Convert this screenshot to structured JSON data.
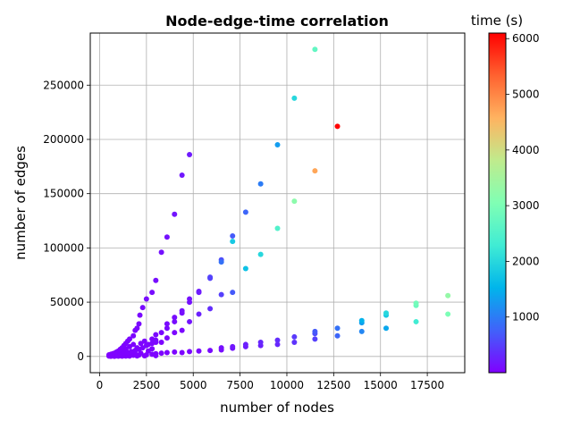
{
  "chart_data": {
    "type": "scatter",
    "title": "Node-edge-time correlation",
    "xlabel": "number of nodes",
    "ylabel": "number of edges",
    "xlim": [
      -500,
      19500
    ],
    "ylim": [
      -15000,
      298000
    ],
    "xticks": [
      0,
      2500,
      5000,
      7500,
      10000,
      12500,
      15000,
      17500
    ],
    "yticks": [
      0,
      50000,
      100000,
      150000,
      200000,
      250000
    ],
    "xtick_labels": [
      "0",
      "2500",
      "5000",
      "7500",
      "10000",
      "12500",
      "15000",
      "17500"
    ],
    "ytick_labels": [
      "0",
      "50000",
      "100000",
      "150000",
      "200000",
      "250000"
    ],
    "grid": true,
    "colorbar": {
      "label": "time (s)",
      "range": [
        0,
        6100
      ],
      "ticks": [
        1000,
        2000,
        3000,
        4000,
        5000,
        6000
      ],
      "tick_labels": [
        "1000",
        "2000",
        "3000",
        "4000",
        "5000",
        "6000"
      ],
      "colormap": "rainbow"
    },
    "points": [
      {
        "x": 500,
        "y": 1500,
        "t": 5
      },
      {
        "x": 600,
        "y": 2000,
        "t": 8
      },
      {
        "x": 700,
        "y": 2500,
        "t": 10
      },
      {
        "x": 800,
        "y": 3000,
        "t": 12
      },
      {
        "x": 900,
        "y": 4000,
        "t": 15
      },
      {
        "x": 1000,
        "y": 5000,
        "t": 18
      },
      {
        "x": 1100,
        "y": 6500,
        "t": 20
      },
      {
        "x": 1200,
        "y": 8000,
        "t": 25
      },
      {
        "x": 1300,
        "y": 10000,
        "t": 30
      },
      {
        "x": 1400,
        "y": 12000,
        "t": 35
      },
      {
        "x": 1500,
        "y": 14000,
        "t": 40
      },
      {
        "x": 1600,
        "y": 16000,
        "t": 45
      },
      {
        "x": 1800,
        "y": 19000,
        "t": 50
      },
      {
        "x": 1900,
        "y": 24000,
        "t": 55
      },
      {
        "x": 2000,
        "y": 26000,
        "t": 60
      },
      {
        "x": 2100,
        "y": 30000,
        "t": 70
      },
      {
        "x": 2150,
        "y": 38000,
        "t": 75
      },
      {
        "x": 2300,
        "y": 45000,
        "t": 80
      },
      {
        "x": 2500,
        "y": 53000,
        "t": 90
      },
      {
        "x": 2800,
        "y": 59000,
        "t": 100
      },
      {
        "x": 3000,
        "y": 70000,
        "t": 110
      },
      {
        "x": 3300,
        "y": 96000,
        "t": 130
      },
      {
        "x": 3600,
        "y": 110000,
        "t": 140
      },
      {
        "x": 4000,
        "y": 131000,
        "t": 160
      },
      {
        "x": 4400,
        "y": 167000,
        "t": 180
      },
      {
        "x": 4800,
        "y": 186000,
        "t": 200
      },
      {
        "x": 500,
        "y": 800,
        "t": 5
      },
      {
        "x": 650,
        "y": 1200,
        "t": 8
      },
      {
        "x": 800,
        "y": 1600,
        "t": 10
      },
      {
        "x": 950,
        "y": 2000,
        "t": 12
      },
      {
        "x": 1100,
        "y": 2600,
        "t": 15
      },
      {
        "x": 1300,
        "y": 3200,
        "t": 18
      },
      {
        "x": 1500,
        "y": 3800,
        "t": 20
      },
      {
        "x": 1700,
        "y": 4500,
        "t": 25
      },
      {
        "x": 1900,
        "y": 5500,
        "t": 30
      },
      {
        "x": 2100,
        "y": 6500,
        "t": 35
      },
      {
        "x": 2300,
        "y": 8000,
        "t": 40
      },
      {
        "x": 2500,
        "y": 10000,
        "t": 45
      },
      {
        "x": 2800,
        "y": 12000,
        "t": 50
      },
      {
        "x": 3000,
        "y": 15000,
        "t": 60
      },
      {
        "x": 3000,
        "y": 20000,
        "t": 65
      },
      {
        "x": 3300,
        "y": 22000,
        "t": 70
      },
      {
        "x": 3600,
        "y": 26000,
        "t": 80
      },
      {
        "x": 3600,
        "y": 30000,
        "t": 85
      },
      {
        "x": 4000,
        "y": 32000,
        "t": 90
      },
      {
        "x": 4000,
        "y": 36000,
        "t": 95
      },
      {
        "x": 4400,
        "y": 40000,
        "t": 110
      },
      {
        "x": 4400,
        "y": 42000,
        "t": 115
      },
      {
        "x": 4800,
        "y": 50000,
        "t": 130
      },
      {
        "x": 4800,
        "y": 53000,
        "t": 135
      },
      {
        "x": 5300,
        "y": 59000,
        "t": 200
      },
      {
        "x": 5300,
        "y": 60000,
        "t": 210
      },
      {
        "x": 5900,
        "y": 72000,
        "t": 500
      },
      {
        "x": 5900,
        "y": 73000,
        "t": 520
      },
      {
        "x": 6500,
        "y": 87000,
        "t": 900
      },
      {
        "x": 6500,
        "y": 89000,
        "t": 600
      },
      {
        "x": 7100,
        "y": 106000,
        "t": 1800
      },
      {
        "x": 7100,
        "y": 111000,
        "t": 700
      },
      {
        "x": 7800,
        "y": 133000,
        "t": 800
      },
      {
        "x": 8600,
        "y": 159000,
        "t": 1000
      },
      {
        "x": 9500,
        "y": 195000,
        "t": 1300
      },
      {
        "x": 10400,
        "y": 238000,
        "t": 2000
      },
      {
        "x": 11500,
        "y": 283000,
        "t": 2700
      },
      {
        "x": 12700,
        "y": 212000,
        "t": 6100
      },
      {
        "x": 11500,
        "y": 171000,
        "t": 4700
      },
      {
        "x": 10400,
        "y": 143000,
        "t": 3200
      },
      {
        "x": 9500,
        "y": 118000,
        "t": 2500
      },
      {
        "x": 8600,
        "y": 94000,
        "t": 2000
      },
      {
        "x": 7800,
        "y": 81000,
        "t": 1700
      },
      {
        "x": 7100,
        "y": 59000,
        "t": 700
      },
      {
        "x": 6500,
        "y": 57000,
        "t": 500
      },
      {
        "x": 5900,
        "y": 44000,
        "t": 350
      },
      {
        "x": 5300,
        "y": 39000,
        "t": 250
      },
      {
        "x": 4800,
        "y": 32000,
        "t": 150
      },
      {
        "x": 500,
        "y": 300,
        "t": 3
      },
      {
        "x": 700,
        "y": 400,
        "t": 4
      },
      {
        "x": 900,
        "y": 500,
        "t": 5
      },
      {
        "x": 1100,
        "y": 600,
        "t": 6
      },
      {
        "x": 1300,
        "y": 800,
        "t": 8
      },
      {
        "x": 1500,
        "y": 900,
        "t": 9
      },
      {
        "x": 1800,
        "y": 1100,
        "t": 10
      },
      {
        "x": 2100,
        "y": 1300,
        "t": 12
      },
      {
        "x": 2500,
        "y": 1500,
        "t": 15
      },
      {
        "x": 2800,
        "y": 2000,
        "t": 18
      },
      {
        "x": 3000,
        "y": 2500,
        "t": 20
      },
      {
        "x": 3300,
        "y": 3000,
        "t": 25
      },
      {
        "x": 3600,
        "y": 3500,
        "t": 30
      },
      {
        "x": 4000,
        "y": 4000,
        "t": 35
      },
      {
        "x": 4400,
        "y": 3500,
        "t": 40
      },
      {
        "x": 4800,
        "y": 4500,
        "t": 45
      },
      {
        "x": 5300,
        "y": 5000,
        "t": 60
      },
      {
        "x": 5900,
        "y": 5500,
        "t": 80
      },
      {
        "x": 6500,
        "y": 6000,
        "t": 100
      },
      {
        "x": 7100,
        "y": 7500,
        "t": 150
      },
      {
        "x": 7800,
        "y": 9000,
        "t": 200
      },
      {
        "x": 8600,
        "y": 10000,
        "t": 250
      },
      {
        "x": 9500,
        "y": 11000,
        "t": 300
      },
      {
        "x": 10400,
        "y": 13000,
        "t": 400
      },
      {
        "x": 11500,
        "y": 16000,
        "t": 500
      },
      {
        "x": 12700,
        "y": 19000,
        "t": 800
      },
      {
        "x": 14000,
        "y": 23000,
        "t": 1100
      },
      {
        "x": 15300,
        "y": 26000,
        "t": 1400
      },
      {
        "x": 16900,
        "y": 32000,
        "t": 2300
      },
      {
        "x": 18600,
        "y": 39000,
        "t": 3000
      },
      {
        "x": 18600,
        "y": 56000,
        "t": 3300
      },
      {
        "x": 16900,
        "y": 47000,
        "t": 2800
      },
      {
        "x": 16900,
        "y": 49000,
        "t": 2900
      },
      {
        "x": 15300,
        "y": 38000,
        "t": 1800
      },
      {
        "x": 15300,
        "y": 40000,
        "t": 2000
      },
      {
        "x": 14000,
        "y": 31000,
        "t": 1300
      },
      {
        "x": 14000,
        "y": 33000,
        "t": 1500
      },
      {
        "x": 12700,
        "y": 26000,
        "t": 900
      },
      {
        "x": 11500,
        "y": 21000,
        "t": 600
      },
      {
        "x": 11500,
        "y": 23000,
        "t": 700
      },
      {
        "x": 10400,
        "y": 18000,
        "t": 450
      },
      {
        "x": 9500,
        "y": 15000,
        "t": 350
      },
      {
        "x": 8600,
        "y": 13000,
        "t": 300
      },
      {
        "x": 7800,
        "y": 11000,
        "t": 250
      },
      {
        "x": 7100,
        "y": 9000,
        "t": 180
      },
      {
        "x": 6500,
        "y": 8000,
        "t": 120
      },
      {
        "x": 600,
        "y": 100,
        "t": 2
      },
      {
        "x": 800,
        "y": 150,
        "t": 2
      },
      {
        "x": 1000,
        "y": 200,
        "t": 3
      },
      {
        "x": 1200,
        "y": 250,
        "t": 3
      },
      {
        "x": 1400,
        "y": 300,
        "t": 4
      },
      {
        "x": 1600,
        "y": 350,
        "t": 4
      },
      {
        "x": 2000,
        "y": 400,
        "t": 5
      },
      {
        "x": 2400,
        "y": 500,
        "t": 6
      },
      {
        "x": 3000,
        "y": 700,
        "t": 8
      },
      {
        "x": 1000,
        "y": 3500,
        "t": 10
      },
      {
        "x": 1200,
        "y": 5000,
        "t": 12
      },
      {
        "x": 1400,
        "y": 7000,
        "t": 15
      },
      {
        "x": 1600,
        "y": 9000,
        "t": 18
      },
      {
        "x": 1800,
        "y": 11000,
        "t": 20
      },
      {
        "x": 2000,
        "y": 8000,
        "t": 22
      },
      {
        "x": 2200,
        "y": 12000,
        "t": 25
      },
      {
        "x": 2400,
        "y": 14000,
        "t": 30
      },
      {
        "x": 2600,
        "y": 11000,
        "t": 32
      },
      {
        "x": 1700,
        "y": 2000,
        "t": 10
      },
      {
        "x": 1900,
        "y": 2500,
        "t": 12
      },
      {
        "x": 2200,
        "y": 3000,
        "t": 14
      },
      {
        "x": 2600,
        "y": 5000,
        "t": 18
      },
      {
        "x": 2800,
        "y": 7000,
        "t": 20
      },
      {
        "x": 3300,
        "y": 13000,
        "t": 35
      },
      {
        "x": 3600,
        "y": 17000,
        "t": 40
      },
      {
        "x": 4000,
        "y": 22000,
        "t": 50
      },
      {
        "x": 4400,
        "y": 24000,
        "t": 55
      },
      {
        "x": 3000,
        "y": 13000,
        "t": 30
      },
      {
        "x": 2800,
        "y": 16000,
        "t": 28
      }
    ]
  }
}
